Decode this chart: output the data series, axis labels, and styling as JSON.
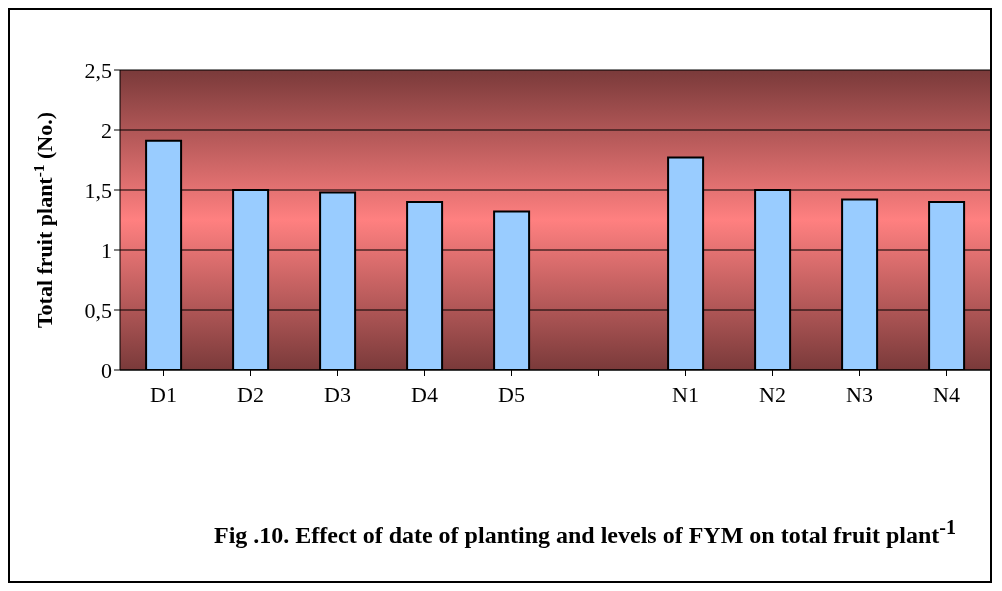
{
  "chart_data": {
    "type": "bar",
    "title": "Fig .10. Effect  of date of planting and levels of FYM on total fruit plant$^{-1}$",
    "ylabel": "Total fruit plant$^{-1}$ (No.)",
    "categories": [
      "D1",
      "D2",
      "D3",
      "D4",
      "D5",
      null,
      "N1",
      "N2",
      "N3",
      "N4"
    ],
    "values": [
      1.91,
      1.5,
      1.48,
      1.4,
      1.32,
      null,
      1.77,
      1.5,
      1.42,
      1.4
    ],
    "color": "#99ccff",
    "ylim": [
      0,
      2.5
    ],
    "yticks": [
      0,
      {
        "value": 0.5,
        "label": "0,5"
      },
      1,
      {
        "value": 1.5,
        "label": "1,5"
      },
      2,
      {
        "value": 2.5,
        "label": "2,5"
      }
    ],
    "grid": "y",
    "legend": false
  }
}
